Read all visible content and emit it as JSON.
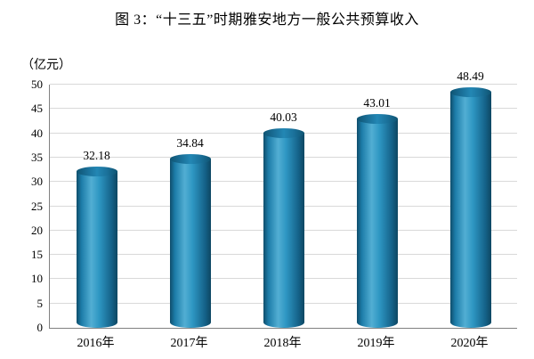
{
  "chart_data": {
    "type": "bar",
    "title": "图 3：“十三五”时期雅安地方一般公共预算收入",
    "ylabel": "（亿元）",
    "xlabel": "",
    "categories": [
      "2016年",
      "2017年",
      "2018年",
      "2019年",
      "2020年"
    ],
    "values": [
      32.18,
      34.84,
      40.03,
      43.01,
      48.49
    ],
    "ylim": [
      0,
      50
    ],
    "ytick_step": 5,
    "grid": "horizontal",
    "legend": "none",
    "bar_style": "cylinder",
    "colors": {
      "bar_fill": "#1f84b0",
      "bar_edge": "#0f4d6b",
      "gridline": "#d9d9d9",
      "axis_line": "#808080",
      "text": "#000000",
      "background": "#ffffff"
    }
  }
}
